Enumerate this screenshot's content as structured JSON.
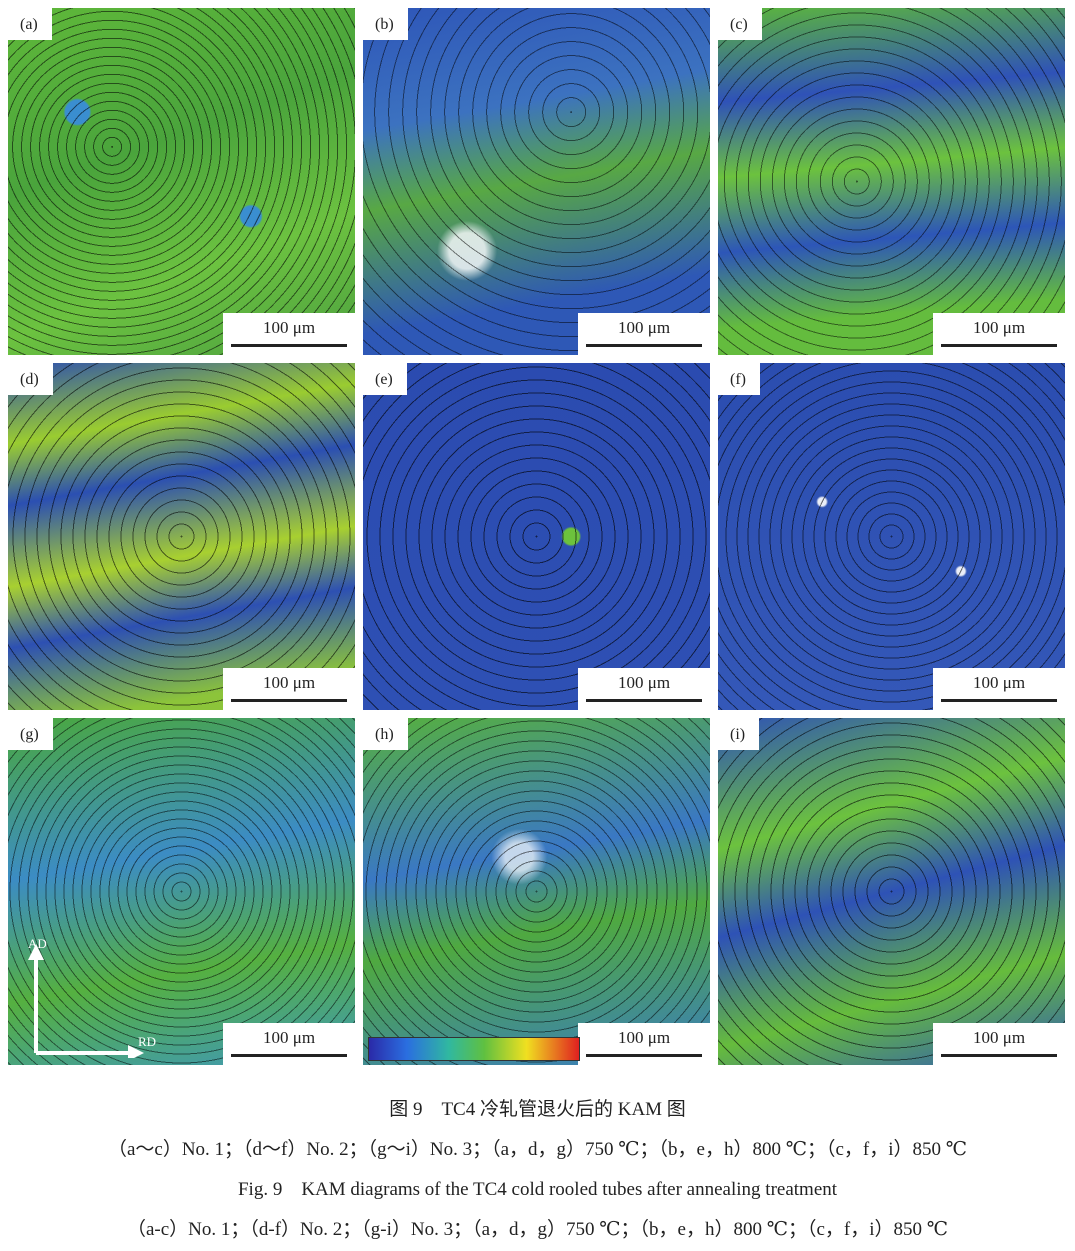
{
  "panels": [
    {
      "label": "(a)",
      "scale_bar": "100 μm"
    },
    {
      "label": "(b)",
      "scale_bar": "100 μm"
    },
    {
      "label": "(c)",
      "scale_bar": "100 μm"
    },
    {
      "label": "(d)",
      "scale_bar": "100 μm"
    },
    {
      "label": "(e)",
      "scale_bar": "100 μm"
    },
    {
      "label": "(f)",
      "scale_bar": "100 μm"
    },
    {
      "label": "(g)",
      "scale_bar": "100 μm"
    },
    {
      "label": "(h)",
      "scale_bar": "100 μm"
    },
    {
      "label": "(i)",
      "scale_bar": "100 μm"
    }
  ],
  "axes": {
    "vertical": "AD",
    "horizontal": "RD"
  },
  "caption": {
    "cn_title": "图 9　TC4 冷轧管退火后的 KAM 图",
    "cn_note": "（a～c）No. 1；（d～f）No. 2；（g～i）No. 3；（a，d，g）750 ℃；（b，e，h）800 ℃；（c，f，i）850 ℃",
    "en_title": "Fig. 9　KAM diagrams of the TC4 cold rooled tubes after annealing treatment",
    "en_note": "（a-c）No. 1；（d-f）No. 2；（g-i）No. 3；（a，d，g）750 ℃；（b，e，h）800 ℃；（c，f，i）850 ℃"
  }
}
